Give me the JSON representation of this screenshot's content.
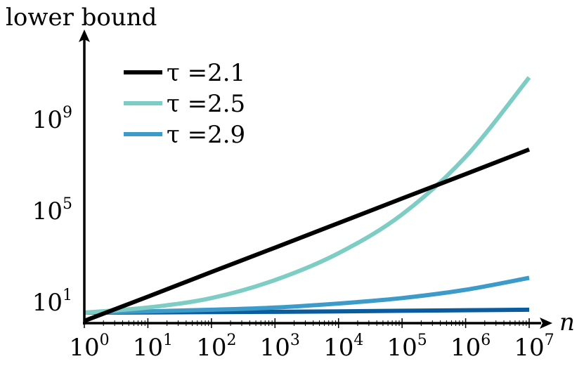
{
  "chart_data": {
    "type": "line",
    "ylabel": "lower bound",
    "xlabel": "n",
    "x_scale": "log",
    "y_scale": "log",
    "x_range": [
      1,
      10000000
    ],
    "y_range": [
      1,
      100000000000
    ],
    "x_ticks": [
      {
        "base": "10",
        "exp": "0",
        "value": 1
      },
      {
        "base": "10",
        "exp": "1",
        "value": 10
      },
      {
        "base": "10",
        "exp": "2",
        "value": 100
      },
      {
        "base": "10",
        "exp": "3",
        "value": 1000
      },
      {
        "base": "10",
        "exp": "4",
        "value": 10000
      },
      {
        "base": "10",
        "exp": "5",
        "value": 100000
      },
      {
        "base": "10",
        "exp": "6",
        "value": 1000000
      },
      {
        "base": "10",
        "exp": "7",
        "value": 10000000
      }
    ],
    "y_ticks": [
      {
        "base": "10",
        "exp": "1",
        "value": 10
      },
      {
        "base": "10",
        "exp": "5",
        "value": 100000
      },
      {
        "base": "10",
        "exp": "9",
        "value": 1000000000
      }
    ],
    "legend_position": "top-left",
    "series": [
      {
        "name": "τ =2.1",
        "color": "#000000",
        "in_legend": true,
        "x": [
          1,
          10,
          100,
          1000,
          10000,
          100000,
          1000000,
          10000000
        ],
        "y": [
          1.3,
          15,
          180,
          2100,
          25000,
          300000,
          3500000,
          42000000
        ]
      },
      {
        "name": "τ =2.5",
        "color": "#7ecdc4",
        "in_legend": true,
        "x": [
          1,
          10,
          100,
          1000,
          10000,
          100000,
          1000000,
          10000000
        ],
        "y": [
          3,
          5,
          13,
          80,
          1200,
          60000,
          20000000,
          60000000000
        ]
      },
      {
        "name": "τ =2.9",
        "color": "#3d9bc9",
        "in_legend": true,
        "x": [
          1,
          10,
          100,
          1000,
          10000,
          100000,
          1000000,
          10000000
        ],
        "y": [
          3,
          3.4,
          4,
          5,
          7.5,
          13,
          30,
          100
        ]
      },
      {
        "name": "",
        "color": "#0b5c9e",
        "in_legend": false,
        "x": [
          1,
          10,
          100,
          1000,
          10000,
          100000,
          1000000,
          10000000
        ],
        "y": [
          3,
          3.05,
          3.15,
          3.25,
          3.4,
          3.6,
          3.8,
          4
        ]
      }
    ]
  }
}
